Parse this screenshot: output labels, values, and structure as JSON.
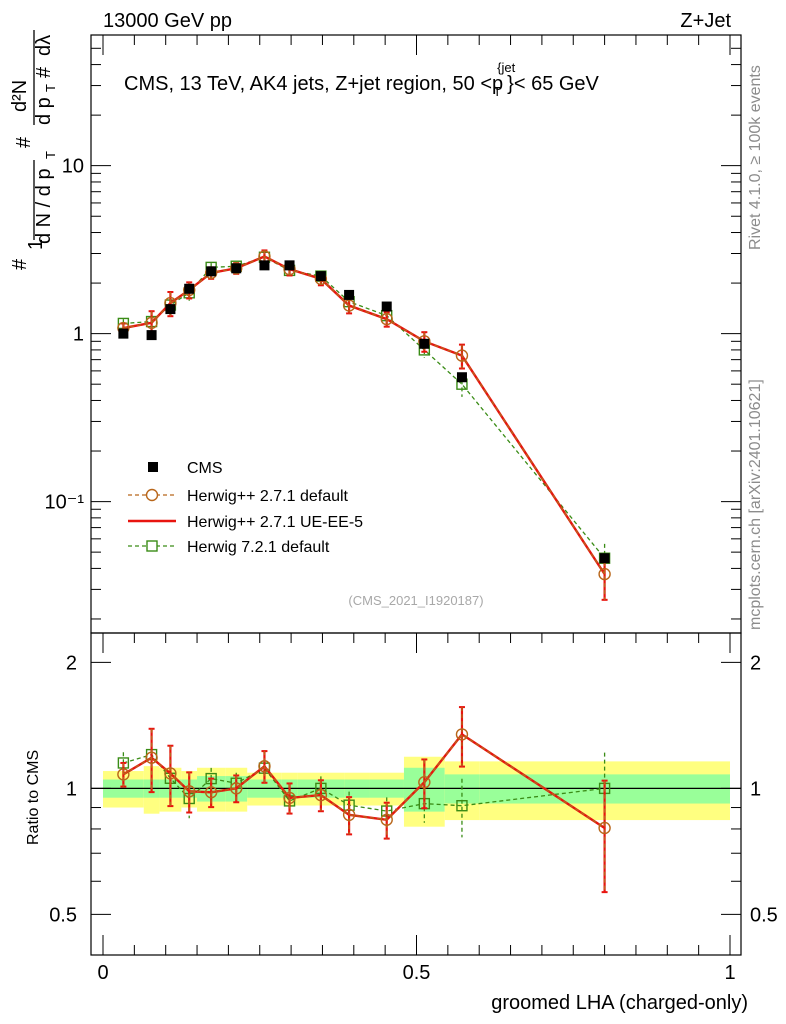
{
  "header": {
    "left": "13000 GeV pp",
    "right": "Z+Jet",
    "side_rivet": "Rivet 4.1.0, ≥ 100k events",
    "side_url": "mcplots.cern.ch [arXiv:2401.10621]"
  },
  "chart_data": {
    "type": "line",
    "title": "CMS, 13 TeV, AK4 jets, Z+jet region, 50 <p_T^{jet}< 65 GeV",
    "xlabel": "groomed LHA (charged-only)",
    "ylabel": "1/(dN/dpT) d²N/(dpT dλ)",
    "ratio_ylabel": "Ratio to CMS",
    "watermark": "(CMS_2021_I1920187)",
    "xlim": [
      0,
      1
    ],
    "ylim": [
      0.0165,
      60
    ],
    "yscale": "log",
    "ratio_ylim": [
      0.4,
      2.35
    ],
    "x_ticks": [
      "0",
      "0.5",
      "1"
    ],
    "y_ticks": [
      "10⁻¹",
      "1",
      "10"
    ],
    "ratio_ticks": [
      "0.5",
      "1",
      "2"
    ],
    "x": [
      0.0325,
      0.0775,
      0.1075,
      0.1375,
      0.1725,
      0.2125,
      0.2575,
      0.2975,
      0.3475,
      0.3925,
      0.4525,
      0.5125,
      0.5725,
      0.8
    ],
    "bin_edges": [
      0.0,
      0.065,
      0.09,
      0.125,
      0.15,
      0.195,
      0.23,
      0.285,
      0.31,
      0.385,
      0.4,
      0.48,
      0.545,
      0.6,
      1.0
    ],
    "series": [
      {
        "name": "CMS",
        "color": "#000000",
        "marker": "square-filled",
        "values": [
          1.0,
          0.98,
          1.4,
          1.85,
          2.35,
          2.45,
          2.55,
          2.55,
          2.2,
          1.7,
          1.45,
          0.87,
          0.55,
          0.046
        ],
        "band_inner": [
          0.05,
          0.05,
          0.05,
          0.05,
          0.07,
          0.07,
          0.05,
          0.05,
          0.05,
          0.05,
          0.05,
          0.12,
          0.08,
          0.08
        ],
        "band_outer": [
          0.1,
          0.13,
          0.12,
          0.1,
          0.12,
          0.12,
          0.09,
          0.09,
          0.09,
          0.09,
          0.09,
          0.19,
          0.16,
          0.16
        ]
      },
      {
        "name": "Herwig++ 2.7.1 default",
        "color": "#b8661a",
        "marker": "circle-open",
        "dash": true,
        "values": [
          1.08,
          1.16,
          1.52,
          1.82,
          2.3,
          2.45,
          2.88,
          2.42,
          2.12,
          1.47,
          1.22,
          0.9,
          0.74,
          0.037
        ],
        "errors": [
          0.07,
          0.2,
          0.25,
          0.2,
          0.18,
          0.18,
          0.25,
          0.2,
          0.18,
          0.15,
          0.12,
          0.12,
          0.12,
          0.011
        ]
      },
      {
        "name": "Herwig++ 2.7.1 UE-EE-5",
        "color": "#e8140f",
        "marker": "none",
        "values": [
          1.08,
          1.16,
          1.52,
          1.82,
          2.3,
          2.45,
          2.88,
          2.42,
          2.12,
          1.47,
          1.22,
          0.9,
          0.74,
          0.037
        ],
        "errors": [
          0.07,
          0.2,
          0.25,
          0.2,
          0.18,
          0.18,
          0.25,
          0.2,
          0.18,
          0.15,
          0.12,
          0.12,
          0.12,
          0.011
        ]
      },
      {
        "name": "Herwig 7.2.1 default",
        "color": "#3a8c16",
        "marker": "square-open",
        "dash": true,
        "values": [
          1.15,
          1.18,
          1.48,
          1.75,
          2.48,
          2.52,
          2.85,
          2.38,
          2.2,
          1.55,
          1.28,
          0.8,
          0.5,
          0.046
        ],
        "errors": [
          0.07,
          0.12,
          0.15,
          0.18,
          0.15,
          0.15,
          0.15,
          0.15,
          0.15,
          0.12,
          0.1,
          0.08,
          0.08,
          0.01
        ]
      }
    ],
    "legend": [
      "CMS",
      "Herwig++ 2.7.1 default",
      "Herwig++ 2.7.1 UE-EE-5",
      "Herwig 7.2.1 default"
    ]
  }
}
